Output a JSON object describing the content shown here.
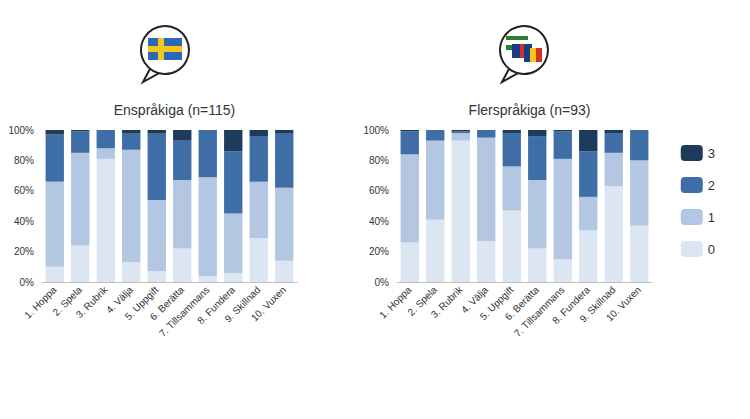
{
  "chart_data": [
    {
      "type": "bar",
      "title": "Enspråkiga (n=115)",
      "stacked": true,
      "grid": false,
      "categories": [
        "1. Hoppa",
        "2. Spela",
        "3. Rubrik",
        "4. Välja",
        "5. Uppgift",
        "6. Berätta",
        "7. Tillsammans",
        "8. Fundera",
        "9. Skillnad",
        "10. Vuxen"
      ],
      "series": [
        {
          "name": "0",
          "color": "#dce6f2",
          "values": [
            10,
            24,
            81,
            13,
            7,
            22,
            4,
            6,
            29,
            14
          ]
        },
        {
          "name": "1",
          "color": "#b4c7e2",
          "values": [
            56,
            61,
            7,
            74,
            47,
            45,
            65,
            39,
            37,
            48
          ]
        },
        {
          "name": "2",
          "color": "#3f6ea6",
          "values": [
            31,
            14,
            12,
            11,
            44,
            26,
            31,
            41,
            30,
            36
          ]
        },
        {
          "name": "3",
          "color": "#1f3b5c",
          "values": [
            3,
            1,
            0,
            2,
            2,
            7,
            0,
            14,
            4,
            2
          ]
        }
      ],
      "ylim": [
        0,
        100
      ],
      "yticks": [
        {
          "value": 0,
          "label": "0%"
        },
        {
          "value": 20,
          "label": "20%"
        },
        {
          "value": 40,
          "label": "40%"
        },
        {
          "value": 60,
          "label": "60%"
        },
        {
          "value": 80,
          "label": "80%"
        },
        {
          "value": 100,
          "label": "100%"
        }
      ]
    },
    {
      "type": "bar",
      "title": "Flerspråkiga (n=93)",
      "stacked": true,
      "grid": false,
      "legend": "right",
      "categories": [
        "1. Hoppa",
        "2. Spela",
        "3. Rubrik",
        "4. Välja",
        "5. Uppgift",
        "6. Berätta",
        "7. Tillsammans",
        "8. Fundera",
        "9. Skillnad",
        "10. Vuxen"
      ],
      "series": [
        {
          "name": "0",
          "color": "#dce6f2",
          "values": [
            26,
            41,
            93,
            27,
            47,
            22,
            15,
            34,
            63,
            37
          ]
        },
        {
          "name": "1",
          "color": "#b4c7e2",
          "values": [
            58,
            52,
            5,
            68,
            29,
            45,
            66,
            22,
            22,
            43
          ]
        },
        {
          "name": "2",
          "color": "#3f6ea6",
          "values": [
            15,
            7,
            1,
            5,
            22,
            29,
            18,
            30,
            13,
            20
          ]
        },
        {
          "name": "3",
          "color": "#1f3b5c",
          "values": [
            1,
            0,
            1,
            0,
            2,
            4,
            1,
            14,
            2,
            0
          ]
        }
      ],
      "ylim": [
        0,
        100
      ],
      "yticks": [
        {
          "value": 0,
          "label": "0%"
        },
        {
          "value": 20,
          "label": "20%"
        },
        {
          "value": 40,
          "label": "40%"
        },
        {
          "value": 60,
          "label": "60%"
        },
        {
          "value": 80,
          "label": "80%"
        },
        {
          "value": 100,
          "label": "100%"
        }
      ]
    }
  ]
}
